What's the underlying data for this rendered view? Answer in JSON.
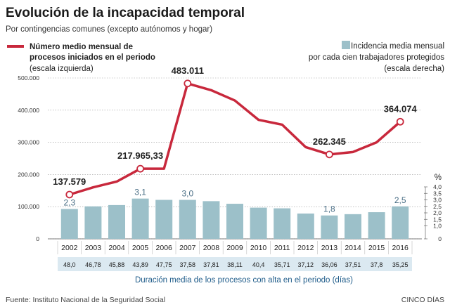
{
  "title": "Evolución de la incapacidad temporal",
  "subtitle": "Por contingencias comunes (excepto autónomos y hogar)",
  "legend_line": {
    "line1": "Número medio mensual de",
    "line2": "procesos iniciados en el periodo",
    "line3": "(escala izquierda)",
    "color": "#c8283c"
  },
  "legend_bar": {
    "line1": "Incidencia media mensual",
    "line2": "por cada cien trabajadores protegidos",
    "line3": "(escala derecha)",
    "color": "#9cc0c9"
  },
  "right_axis_unit": "%",
  "chart_data": {
    "type": "bar",
    "categories": [
      "2002",
      "2003",
      "2004",
      "2005",
      "2006",
      "2007",
      "2008",
      "2009",
      "2010",
      "2011",
      "2012",
      "2013",
      "2014",
      "2015",
      "2016"
    ],
    "series": [
      {
        "name": "Número medio mensual de procesos iniciados en el periodo",
        "type": "line",
        "axis": "left",
        "color": "#c8283c",
        "values": [
          137579,
          160000,
          178000,
          217965.33,
          218000,
          483011,
          462000,
          430000,
          370000,
          355000,
          285000,
          262345,
          270000,
          300000,
          364074
        ]
      },
      {
        "name": "Incidencia media mensual por cada cien trabajadores protegidos",
        "type": "bar",
        "axis": "right",
        "color": "#9cc0c9",
        "values": [
          2.3,
          2.5,
          2.6,
          3.1,
          3.0,
          3.0,
          2.9,
          2.7,
          2.4,
          2.35,
          1.95,
          1.8,
          1.9,
          2.05,
          2.5
        ]
      }
    ],
    "yleft": {
      "ylim": [
        0,
        500000
      ],
      "ticks": [
        "0",
        "100.000",
        "200.000",
        "300.000",
        "400.000",
        "500.000"
      ]
    },
    "yright": {
      "ylim": [
        0,
        4.0
      ],
      "ticks": [
        "0",
        "1,0",
        "1,5",
        "2,0",
        "2,5",
        "3,0",
        "3,5",
        "4,0"
      ]
    },
    "line_labels": [
      {
        "index": 0,
        "text": "137.579"
      },
      {
        "index": 3,
        "text": "217.965,33"
      },
      {
        "index": 5,
        "text": "483.011"
      },
      {
        "index": 11,
        "text": "262.345"
      },
      {
        "index": 14,
        "text": "364.074"
      }
    ],
    "bar_labels": [
      {
        "index": 0,
        "text": "2,3"
      },
      {
        "index": 3,
        "text": "3,1"
      },
      {
        "index": 5,
        "text": "3,0"
      },
      {
        "index": 11,
        "text": "1,8"
      },
      {
        "index": 14,
        "text": "2,5"
      }
    ],
    "duration": {
      "values": [
        "48,0",
        "46,78",
        "45,88",
        "43,89",
        "47,75",
        "37,58",
        "37,81",
        "38,11",
        "40,4",
        "35,71",
        "37,12",
        "36,06",
        "37,51",
        "37,8",
        "35,25"
      ],
      "caption": "Duración media de los procesos con alta en el periodo (días)",
      "color": "#dbe9f1"
    }
  },
  "footer": {
    "source": "Fuente: Instituto Nacional de la Seguridad Social",
    "brand": "CINCO DÍAS"
  }
}
